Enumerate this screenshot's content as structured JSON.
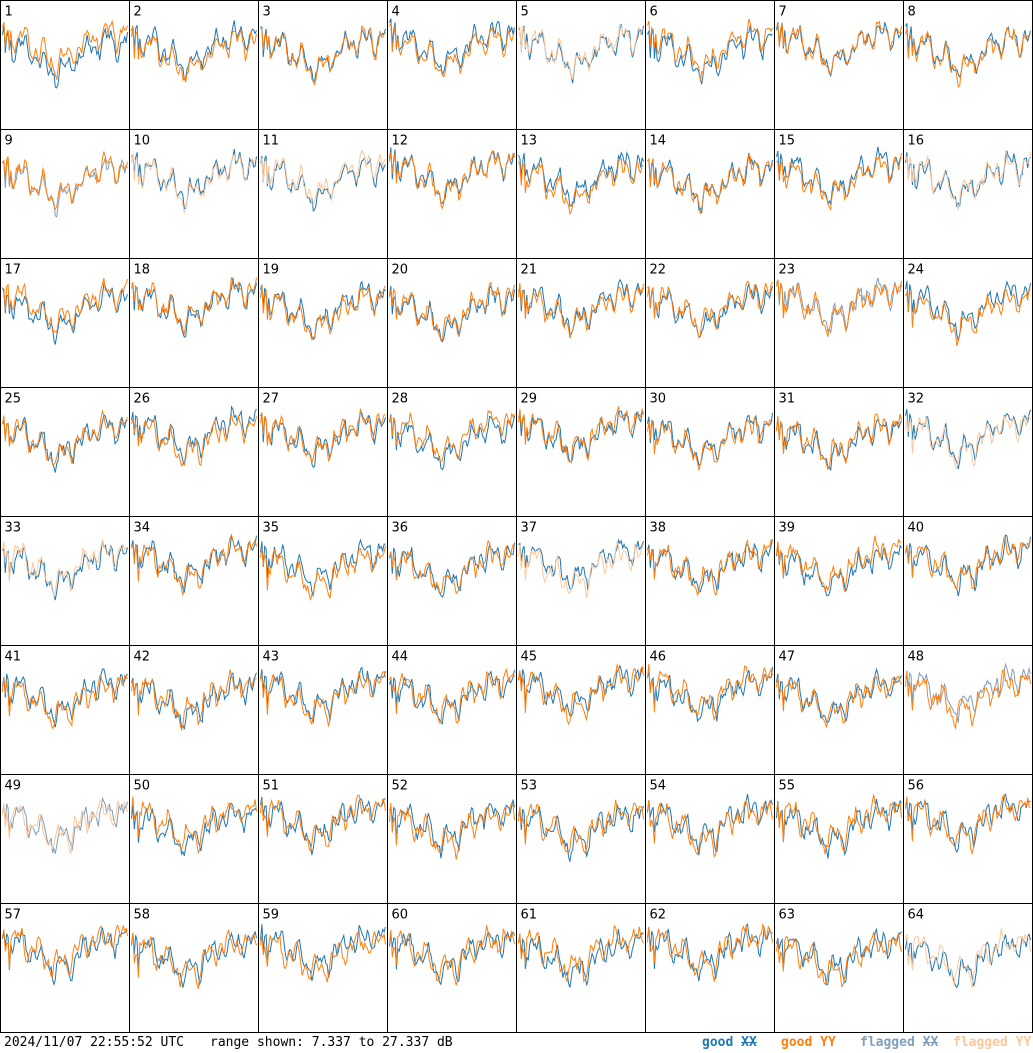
{
  "chart_data": {
    "type": "line",
    "layout": "8x8 small multiples",
    "panels": [
      "1",
      "2",
      "3",
      "4",
      "5",
      "6",
      "7",
      "8",
      "9",
      "10",
      "11",
      "12",
      "13",
      "14",
      "15",
      "16",
      "17",
      "18",
      "19",
      "20",
      "21",
      "22",
      "23",
      "24",
      "25",
      "26",
      "27",
      "28",
      "29",
      "30",
      "31",
      "32",
      "33",
      "34",
      "35",
      "36",
      "37",
      "38",
      "39",
      "40",
      "41",
      "42",
      "43",
      "44",
      "45",
      "46",
      "47",
      "48",
      "49",
      "50",
      "51",
      "52",
      "53",
      "54",
      "55",
      "56",
      "57",
      "58",
      "59",
      "60",
      "61",
      "62",
      "63",
      "64"
    ],
    "series": [
      {
        "name": "good XX",
        "color": "#1f77b4"
      },
      {
        "name": "good YY",
        "color": "#ff7f0e"
      },
      {
        "name": "flagged XX",
        "color": "#7f9fba"
      },
      {
        "name": "flagged YY",
        "color": "#ffc799"
      }
    ],
    "y_range_db": [
      7.337,
      27.337
    ],
    "flags": {
      "flagged_xx_panels": [
        "9",
        "23",
        "48",
        "49"
      ],
      "flagged_yy_panels": [
        "5",
        "10",
        "11",
        "16",
        "32",
        "33",
        "37",
        "49",
        "64"
      ]
    },
    "grid": false
  },
  "footer": {
    "timestamp": "2024/11/07 22:55:52 UTC",
    "range": "range shown: 7.337 to 27.337 dB"
  },
  "legend": {
    "good_xx": {
      "word": "good",
      "pol": "XX",
      "color": "#1f77b4"
    },
    "good_yy": {
      "word": "good",
      "pol": "YY",
      "color": "#ff7f0e"
    },
    "flagged_xx": {
      "word": "flagged",
      "pol": "XX",
      "color": "#7f9fba"
    },
    "flagged_yy": {
      "word": "flagged",
      "pol": "YY",
      "color": "#ffc799"
    }
  }
}
